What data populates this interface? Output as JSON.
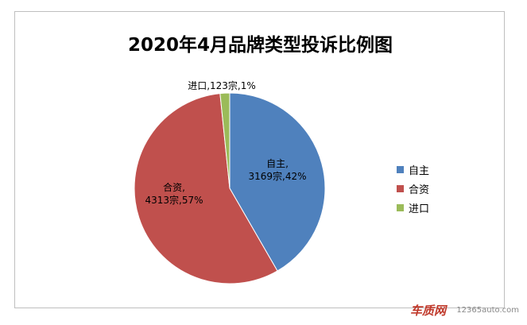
{
  "chart_data": {
    "type": "pie",
    "title": "2020年4月品牌类型投诉比例图",
    "slices": [
      {
        "label": "自主",
        "value": 3169,
        "unit": "宗",
        "percent": "42%",
        "color": "#4f81bd",
        "data_label": "自主,\n3169宗,42%"
      },
      {
        "label": "合资",
        "value": 4313,
        "unit": "宗",
        "percent": "57%",
        "color": "#c0504d",
        "data_label": "合资,\n4313宗,57%"
      },
      {
        "label": "进口",
        "value": 123,
        "unit": "宗",
        "percent": "1%",
        "color": "#9bbb59",
        "data_label": "进口,123宗,1%"
      }
    ],
    "legend": [
      "自主",
      "合资",
      "进口"
    ],
    "legend_position": "right"
  },
  "watermark": {
    "logo_text": "车质网",
    "url": "12365auto.com",
    "logo_color": "#c0392b"
  }
}
